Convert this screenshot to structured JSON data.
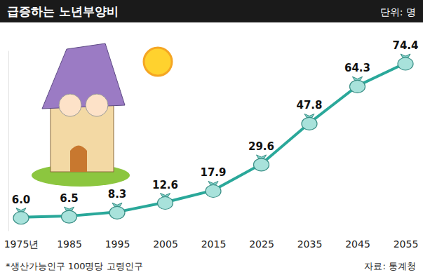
{
  "chart_data": {
    "type": "line",
    "title": "급증하는 노년부양비",
    "annotations": [
      "단위: 명",
      "*생산가능인구 100명당 고령인구",
      "자료: 통계청"
    ],
    "categories": [
      "1975년",
      "1985",
      "1995",
      "2005",
      "2015",
      "2025",
      "2035",
      "2045",
      "2055"
    ],
    "values": [
      6.0,
      6.5,
      8.3,
      12.6,
      17.9,
      29.6,
      47.8,
      64.3,
      74.4
    ],
    "value_labels": [
      "6.0",
      "6.5",
      "8.3",
      "12.6",
      "17.9",
      "29.6",
      "47.8",
      "64.3",
      "74.4"
    ],
    "color": "#2aa89a",
    "ylim": [
      0,
      80
    ],
    "yticks": [],
    "grid": false,
    "data_labels": true,
    "tick_labels": "x",
    "marker": "bag"
  }
}
